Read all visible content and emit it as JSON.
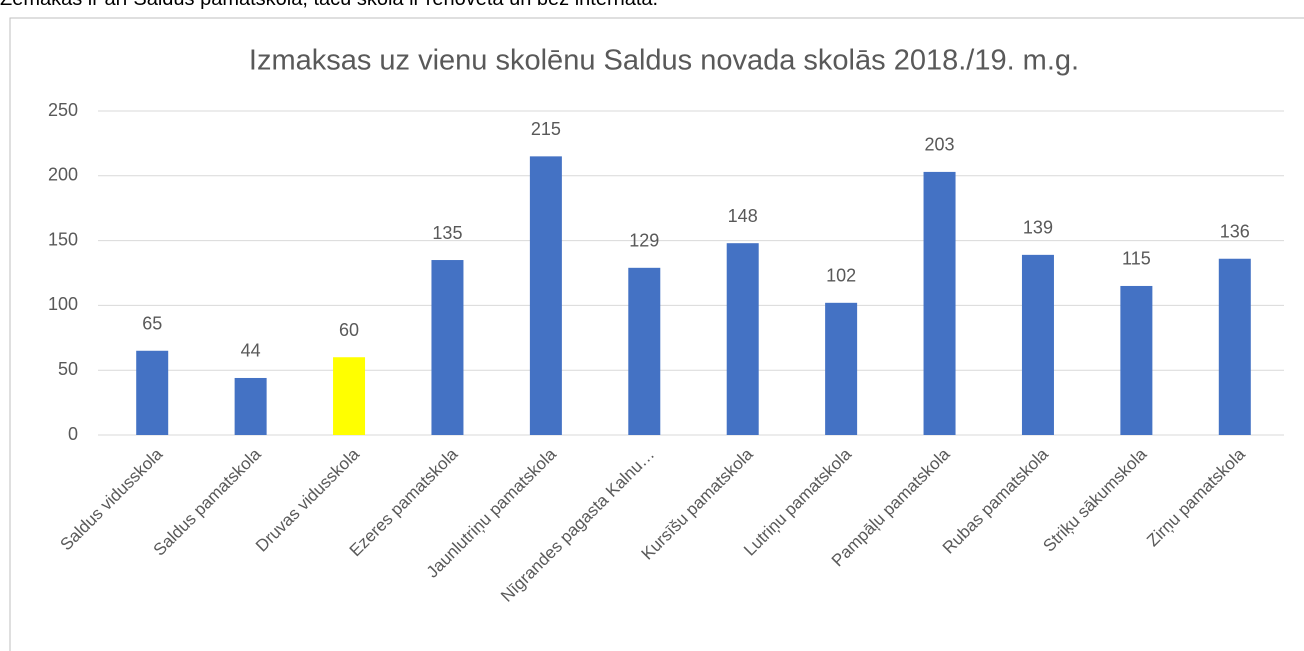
{
  "caption": "Zemākās ir arī Saldus pamatskolā, tāču skola ir renovēta un bez internāta.",
  "chart_data": {
    "type": "bar",
    "title": "Izmaksas uz vienu skolēnu Saldus novada skolās 2018./19. m.g.",
    "categories": [
      "Saldus vidusskola",
      "Saldus pamatskola",
      "Druvas vidusskola",
      "Ezeres pamatskola",
      "Jaunlutriņu pamatskola",
      "Nīgrandes pagasta Kalnu…",
      "Kursīšu pamatskola",
      "Lutriņu pamatskola",
      "Pampāļu pamatskola",
      "Rubas pamatskola",
      "Striķu sākumskola",
      "Zirņu pamatskola"
    ],
    "values": [
      65,
      44,
      60,
      135,
      215,
      129,
      148,
      102,
      203,
      139,
      115,
      136
    ],
    "colors": [
      "#4472c4",
      "#4472c4",
      "#ffff00",
      "#4472c4",
      "#4472c4",
      "#4472c4",
      "#4472c4",
      "#4472c4",
      "#4472c4",
      "#4472c4",
      "#4472c4",
      "#4472c4"
    ],
    "ylim": [
      0,
      250
    ],
    "yticks": [
      0,
      50,
      100,
      150,
      200,
      250
    ],
    "grid": true
  }
}
